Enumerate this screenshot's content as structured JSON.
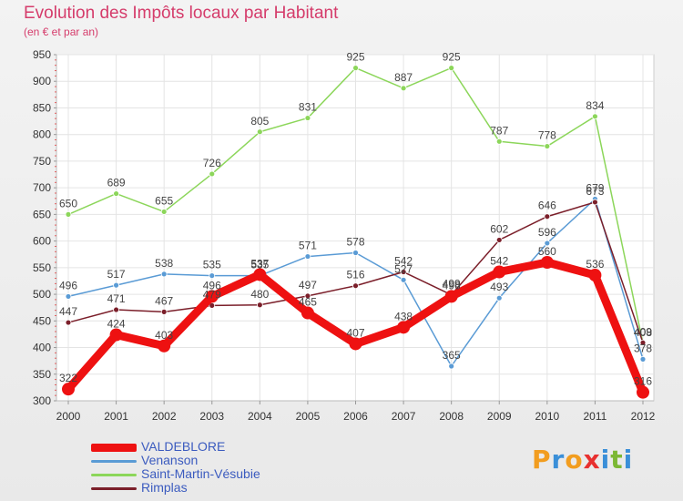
{
  "header": {
    "title": "Evolution des Impôts locaux par Habitant",
    "subtitle": "(en € et par an)"
  },
  "logo": {
    "text": "Proxiti",
    "colors": [
      "#f29d1f",
      "#3a8fd8",
      "#f29d1f",
      "#e8302f",
      "#3a8fd8",
      "#7cb834",
      "#3a8fd8"
    ]
  },
  "chart_data": {
    "type": "line",
    "title": "Evolution des Impôts locaux par Habitant",
    "subtitle": "(en € et par an)",
    "x": [
      "2000",
      "2001",
      "2002",
      "2003",
      "2004",
      "2005",
      "2006",
      "2007",
      "2008",
      "2009",
      "2010",
      "2011",
      "2012"
    ],
    "y_ticks": [
      300,
      350,
      400,
      450,
      500,
      550,
      600,
      650,
      700,
      750,
      800,
      850,
      900,
      950
    ],
    "ylim": [
      300,
      950
    ],
    "grid": true,
    "legend_position": "bottom-left",
    "series": [
      {
        "name": "VALDEBLORE",
        "color": "#ee1111",
        "width": 9,
        "values": [
          322,
          424,
          403,
          496,
          537,
          465,
          407,
          438,
          496,
          542,
          560,
          536,
          316
        ],
        "labels": [
          "322",
          "424",
          "403",
          "496",
          "537",
          "465",
          "407",
          "438",
          "496",
          "542",
          "560",
          "536",
          "316"
        ]
      },
      {
        "name": "Venanson",
        "color": "#5a9bd5",
        "width": 1.5,
        "values": [
          496,
          517,
          538,
          535,
          535,
          571,
          578,
          527,
          365,
          493,
          596,
          679,
          378
        ],
        "labels": [
          "496",
          "517",
          "538",
          "535",
          "535",
          "571",
          "578",
          "527",
          "365",
          "493",
          "596",
          "679",
          "378"
        ]
      },
      {
        "name": "Saint-Martin-Vésubie",
        "color": "#8cd65a",
        "width": 1.5,
        "values": [
          650,
          689,
          655,
          726,
          805,
          831,
          925,
          887,
          925,
          787,
          778,
          834,
          408
        ],
        "labels": [
          "650",
          "689",
          "655",
          "726",
          "805",
          "831",
          "925",
          "887",
          "925",
          "787",
          "778",
          "834",
          "408"
        ]
      },
      {
        "name": "Rimplas",
        "color": "#7b1f2a",
        "width": 1.5,
        "values": [
          447,
          471,
          467,
          479,
          480,
          497,
          516,
          542,
          499,
          602,
          646,
          673,
          409
        ],
        "labels": [
          "447",
          "471",
          "467",
          "479",
          "480",
          "497",
          "516",
          "542",
          "499",
          "602",
          "646",
          "673",
          "409"
        ]
      }
    ]
  }
}
